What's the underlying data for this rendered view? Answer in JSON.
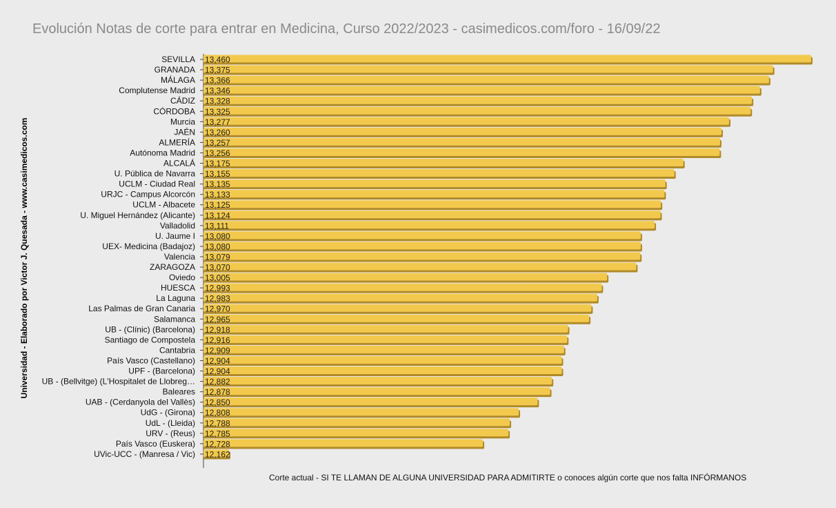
{
  "chart_data": {
    "type": "bar",
    "orientation": "horizontal",
    "title": "Evolución Notas de corte para entrar en Medicina, Curso 2022/2023 - casimedicos.com/foro - 16/09/22",
    "ylabel": "Universidad  - Elaborado por Victor J. Quesada - www.casimedicos.com",
    "xlabel": "Corte actual - SI TE LLAMAN DE ALGUNA UNIVERSIDAD PARA ADMITIRTE o conoces algún corte que nos falta INFÓRMANOS",
    "bar_color": "#f2c94c",
    "bar_shadow_color": "#b08a2a",
    "categories": [
      "SEVILLA",
      "GRANADA",
      "MÁLAGA",
      "Complutense Madrid",
      "CÁDIZ",
      "CÓRDOBA",
      "Murcia",
      "JAÉN",
      "ALMERÍA",
      "Autónoma Madrid",
      "ALCALÁ",
      "U. Pública de Navarra",
      "UCLM - Ciudad Real",
      "URJC - Campus Alcorcón",
      "UCLM - Albacete",
      "U. Miguel Hernández (Alicante)",
      "Valladolid",
      "U. Jaume I",
      "UEX- Medicina (Badajoz)",
      "Valencia",
      "ZARAGOZA",
      "Oviedo",
      "HUESCA",
      "La Laguna",
      "Las Palmas de Gran Canaria",
      "Salamanca",
      "UB - (Clínic) (Barcelona)",
      "Santiago de Compostela",
      "Cantabria",
      "País Vasco (Castellano)",
      "UPF - (Barcelona)",
      "UB - (Bellvitge) (L'Hospitalet de Llobreg…",
      "Baleares",
      "UAB - (Cerdanyola del Vallès)",
      "UdG - (Girona)",
      "UdL - (Lleida)",
      "URV - (Reus)",
      "País Vasco (Euskera)",
      "UVic-UCC - (Manresa / Vic)"
    ],
    "values": [
      13.46,
      13.375,
      13.366,
      13.346,
      13.328,
      13.325,
      13.277,
      13.26,
      13.257,
      13.256,
      13.175,
      13.155,
      13.135,
      13.133,
      13.125,
      13.124,
      13.111,
      13.08,
      13.08,
      13.079,
      13.07,
      13.005,
      12.993,
      12.983,
      12.97,
      12.965,
      12.918,
      12.916,
      12.909,
      12.904,
      12.904,
      12.882,
      12.878,
      12.85,
      12.808,
      12.788,
      12.785,
      12.728,
      12.162
    ],
    "value_labels": [
      "13,460",
      "13,375",
      "13,366",
      "13,346",
      "13,328",
      "13,325",
      "13,277",
      "13,260",
      "13,257",
      "13,256",
      "13,175",
      "13,155",
      "13,135",
      "13,133",
      "13,125",
      "13,124",
      "13,111",
      "13,080",
      "13,080",
      "13,079",
      "13,070",
      "13,005",
      "12,993",
      "12,983",
      "12,970",
      "12,965",
      "12,918",
      "12,916",
      "12,909",
      "12,904",
      "12,904",
      "12,882",
      "12,878",
      "12,850",
      "12,808",
      "12,788",
      "12,785",
      "12,728",
      "12,162"
    ],
    "xlim": [
      12.162,
      13.46
    ],
    "grid": false,
    "legend": "none"
  }
}
